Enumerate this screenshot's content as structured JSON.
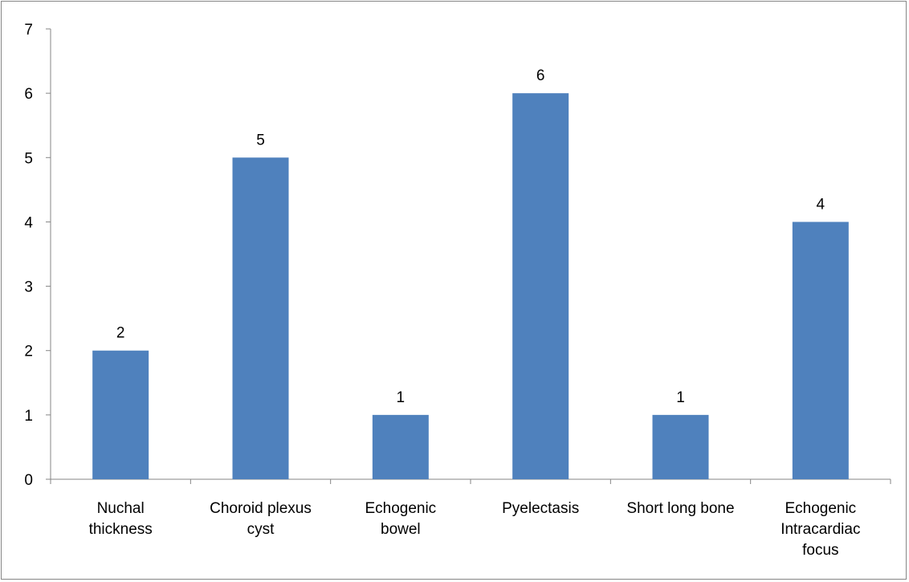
{
  "chart_data": {
    "type": "bar",
    "categories": [
      [
        "Nuchal",
        "thickness"
      ],
      [
        "Choroid plexus",
        "cyst"
      ],
      [
        "Echogenic",
        "bowel"
      ],
      [
        "Pyelectasis"
      ],
      [
        "Short long bone"
      ],
      [
        "Echogenic",
        "Intracardiac",
        "focus"
      ]
    ],
    "values": [
      2,
      5,
      1,
      6,
      1,
      4
    ],
    "data_labels": [
      "2",
      "5",
      "1",
      "6",
      "1",
      "4"
    ],
    "y_ticks": [
      "0",
      "1",
      "2",
      "3",
      "4",
      "5",
      "6",
      "7"
    ],
    "y_tick_values": [
      0,
      1,
      2,
      3,
      4,
      5,
      6,
      7
    ],
    "ylim": [
      0,
      7
    ],
    "grid": false,
    "legend": "none",
    "bar_color": "#4F81BD",
    "axis_color": "#868686"
  }
}
